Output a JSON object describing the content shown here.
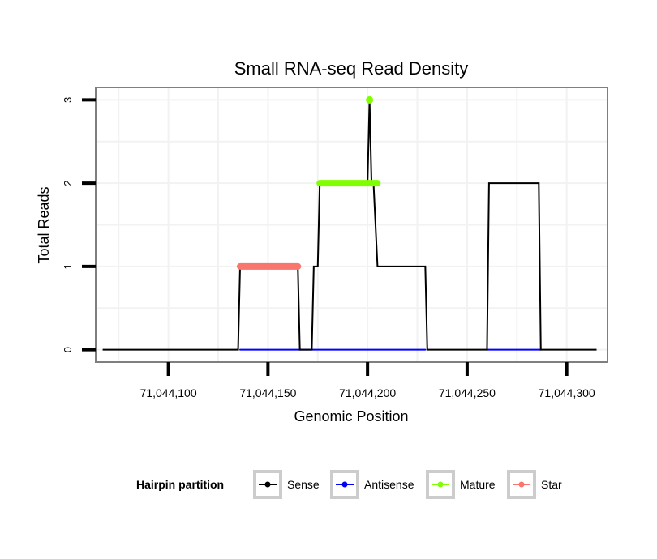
{
  "chart_data": {
    "type": "line",
    "title": "Small RNA-seq Read Density",
    "xlabel": "Genomic Position",
    "ylabel": "Total Reads",
    "xlim": [
      71044063.5,
      71044320.5
    ],
    "ylim": [
      -0.15,
      3.15
    ],
    "x_ticks": [
      {
        "value": 71044100,
        "label": "71,044,100"
      },
      {
        "value": 71044150,
        "label": "71,044,150"
      },
      {
        "value": 71044200,
        "label": "71,044,200"
      },
      {
        "value": 71044250,
        "label": "71,044,250"
      },
      {
        "value": 71044300,
        "label": "71,044,300"
      }
    ],
    "y_ticks": [
      {
        "value": 0,
        "label": "0"
      },
      {
        "value": 1,
        "label": "1"
      },
      {
        "value": 2,
        "label": "2"
      },
      {
        "value": 3,
        "label": "3"
      }
    ],
    "grid": true,
    "legend": {
      "title": "Hairpin partition",
      "position": "bottom",
      "entries": [
        "Sense",
        "Antisense",
        "Mature",
        "Star"
      ]
    },
    "series": [
      {
        "name": "Sense",
        "color": "#000000",
        "points": [
          [
            71044067,
            0
          ],
          [
            71044135,
            0
          ],
          [
            71044136,
            1
          ],
          [
            71044165,
            1
          ],
          [
            71044166,
            0
          ],
          [
            71044172,
            0
          ],
          [
            71044173,
            1
          ],
          [
            71044175,
            1
          ],
          [
            71044176,
            2
          ],
          [
            71044200,
            2
          ],
          [
            71044201,
            3
          ],
          [
            71044202,
            2
          ],
          [
            71044203,
            2
          ],
          [
            71044205,
            1
          ],
          [
            71044229,
            1
          ],
          [
            71044230,
            0
          ],
          [
            71044260,
            0
          ],
          [
            71044261,
            2
          ],
          [
            71044286,
            2
          ],
          [
            71044287,
            0
          ],
          [
            71044315,
            0
          ]
        ]
      },
      {
        "name": "Antisense",
        "color": "#0000ff",
        "points": [
          [
            71044136,
            0
          ],
          [
            71044229,
            0
          ],
          [
            71044260,
            0
          ],
          [
            71044287,
            0
          ]
        ]
      },
      {
        "name": "Mature",
        "color": "#7fff00",
        "points": [
          [
            71044176,
            2
          ],
          [
            71044205,
            2
          ],
          [
            71044201,
            3
          ]
        ]
      },
      {
        "name": "Star",
        "color": "#f8766d",
        "points": [
          [
            71044136,
            1
          ],
          [
            71044165,
            1
          ]
        ]
      }
    ]
  }
}
